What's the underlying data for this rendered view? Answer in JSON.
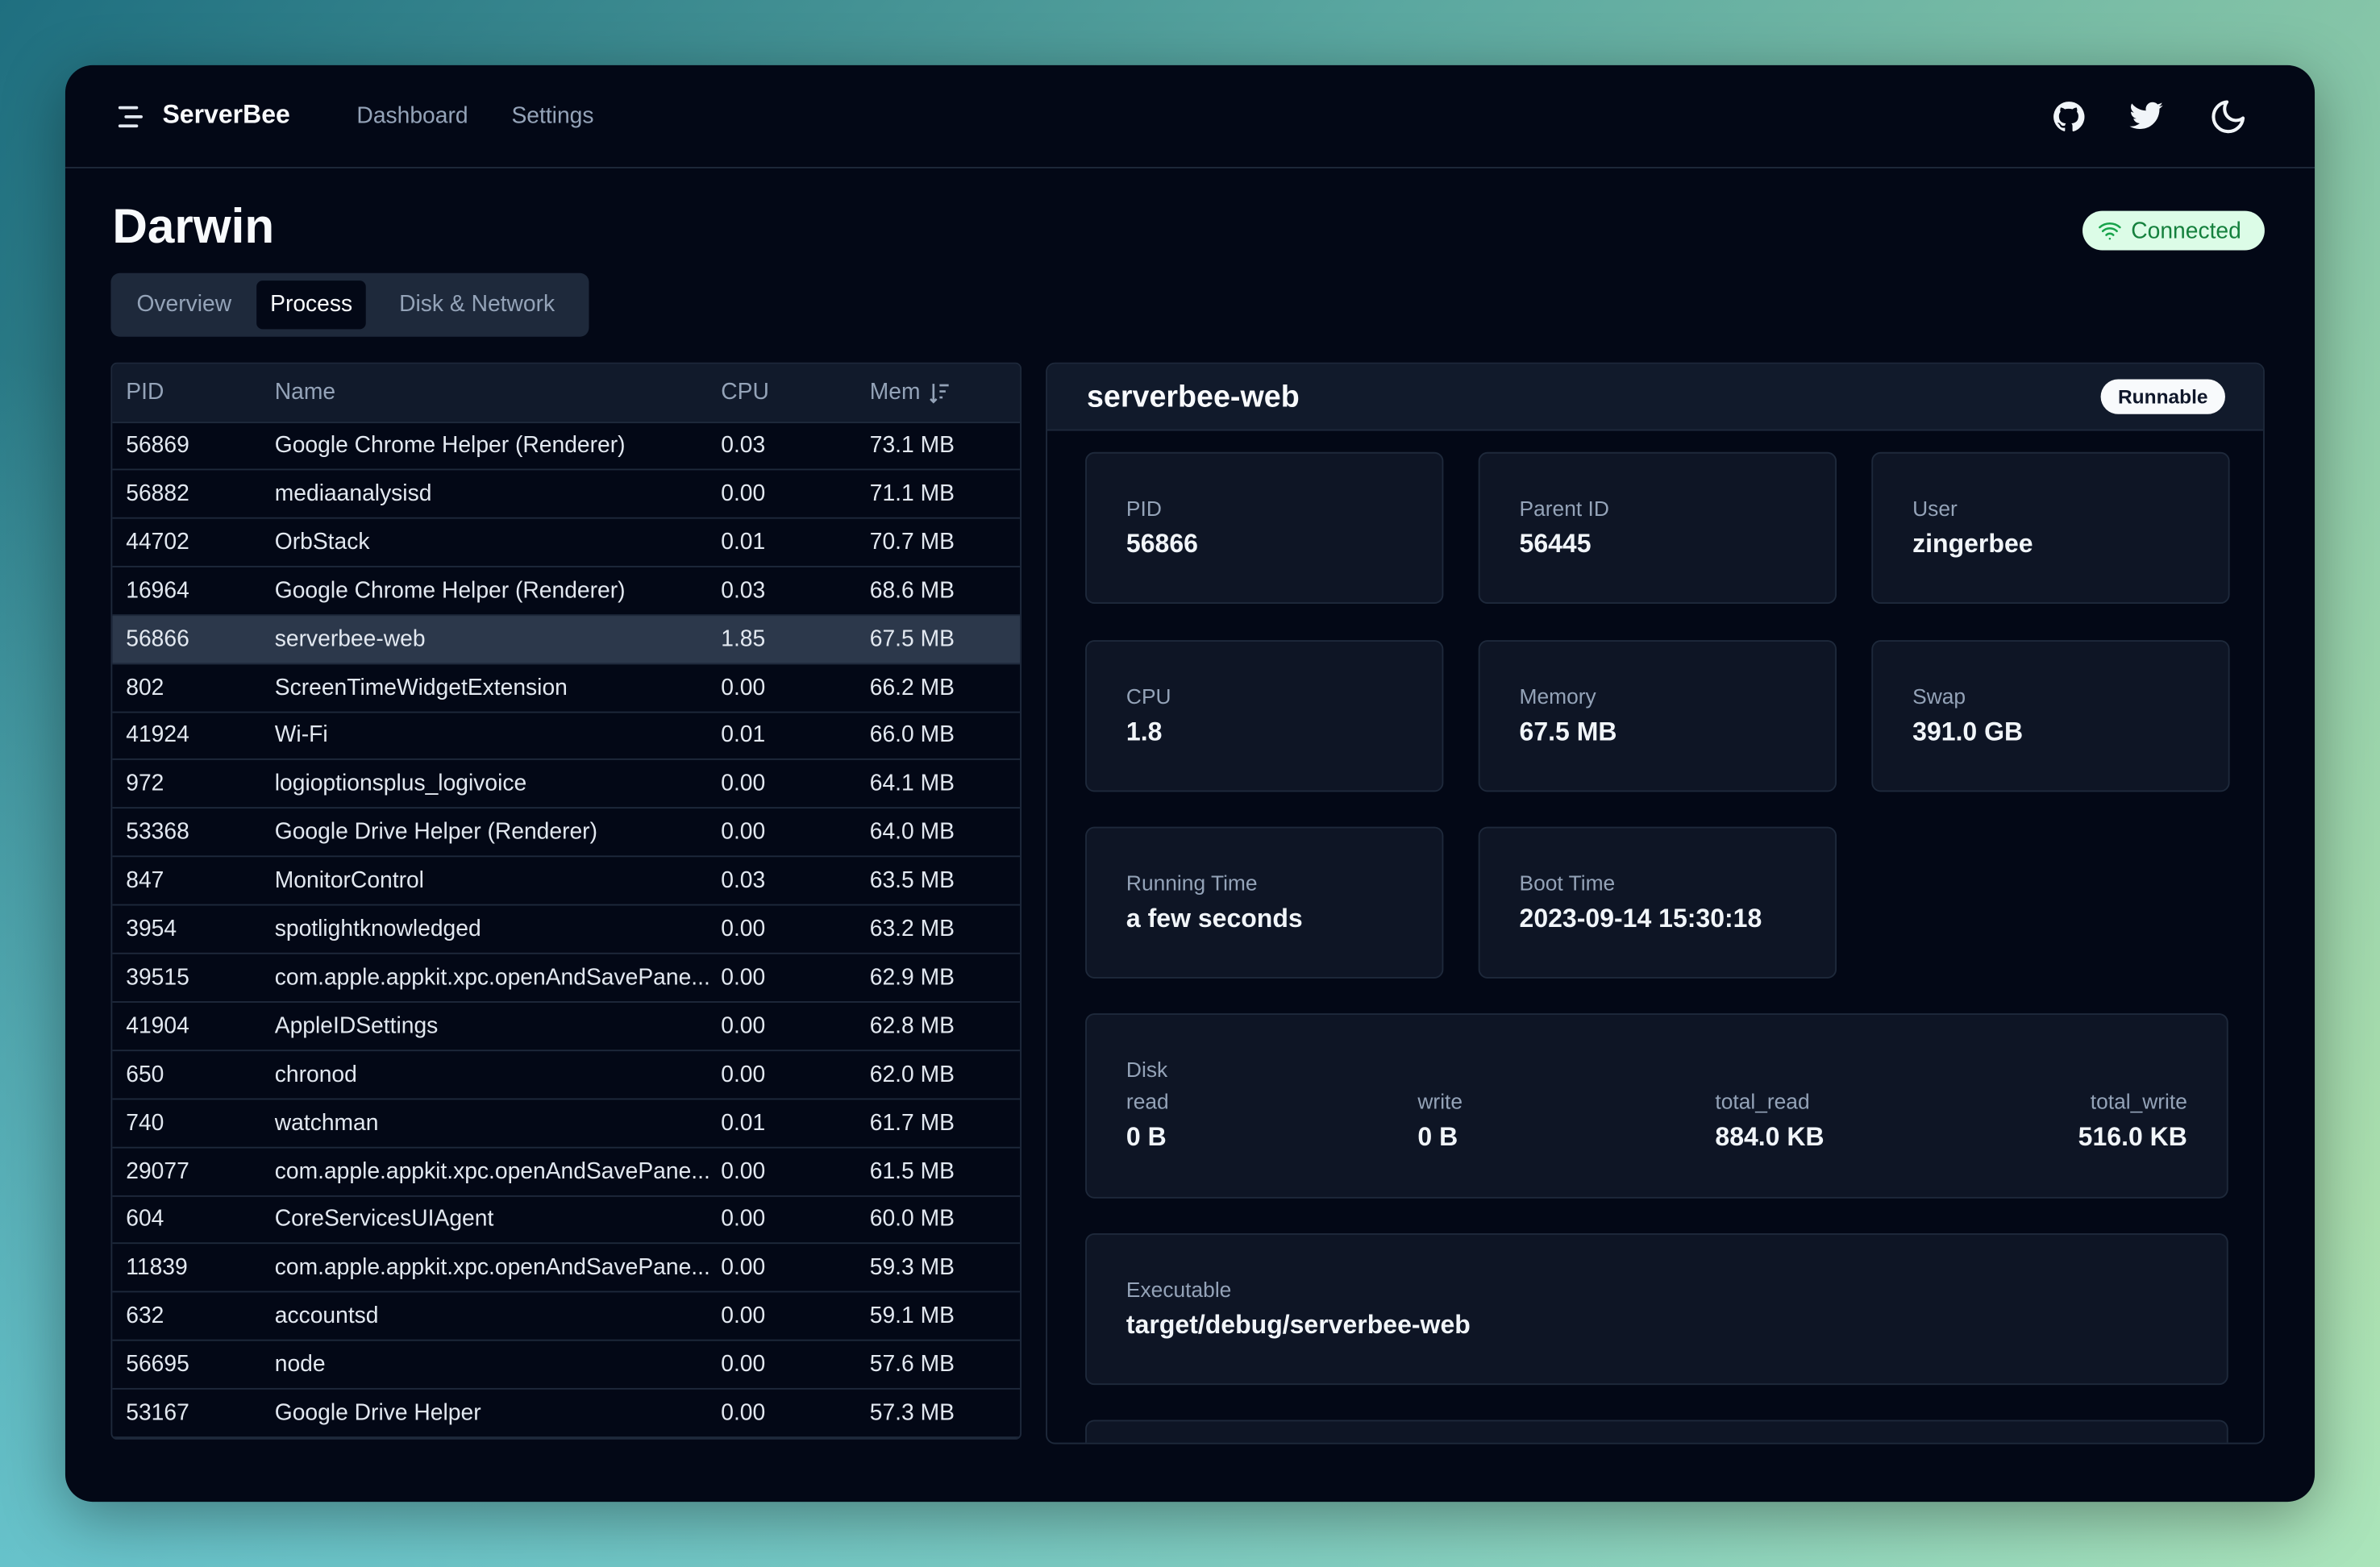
{
  "nav": {
    "brand": "ServerBee",
    "links": [
      "Dashboard",
      "Settings"
    ]
  },
  "header": {
    "title": "Darwin",
    "status": "Connected"
  },
  "tabs": [
    {
      "label": "Overview",
      "active": false
    },
    {
      "label": "Process",
      "active": true
    },
    {
      "label": "Disk & Network",
      "active": false
    }
  ],
  "table": {
    "columns": [
      "PID",
      "Name",
      "CPU",
      "Mem"
    ],
    "rows": [
      [
        "56869",
        "Google Chrome Helper (Renderer)",
        "0.03",
        "73.1 MB"
      ],
      [
        "56882",
        "mediaanalysisd",
        "0.00",
        "71.1 MB"
      ],
      [
        "44702",
        "OrbStack",
        "0.01",
        "70.7 MB"
      ],
      [
        "16964",
        "Google Chrome Helper (Renderer)",
        "0.03",
        "68.6 MB"
      ],
      [
        "56866",
        "serverbee-web",
        "1.85",
        "67.5 MB"
      ],
      [
        "802",
        "ScreenTimeWidgetExtension",
        "0.00",
        "66.2 MB"
      ],
      [
        "41924",
        "Wi-Fi",
        "0.01",
        "66.0 MB"
      ],
      [
        "972",
        "logioptionsplus_logivoice",
        "0.00",
        "64.1 MB"
      ],
      [
        "53368",
        "Google Drive Helper (Renderer)",
        "0.00",
        "64.0 MB"
      ],
      [
        "847",
        "MonitorControl",
        "0.03",
        "63.5 MB"
      ],
      [
        "3954",
        "spotlightknowledged",
        "0.00",
        "63.2 MB"
      ],
      [
        "39515",
        "com.apple.appkit.xpc.openAndSavePane...",
        "0.00",
        "62.9 MB"
      ],
      [
        "41904",
        "AppleIDSettings",
        "0.00",
        "62.8 MB"
      ],
      [
        "650",
        "chronod",
        "0.00",
        "62.0 MB"
      ],
      [
        "740",
        "watchman",
        "0.01",
        "61.7 MB"
      ],
      [
        "29077",
        "com.apple.appkit.xpc.openAndSavePane...",
        "0.00",
        "61.5 MB"
      ],
      [
        "604",
        "CoreServicesUIAgent",
        "0.00",
        "60.0 MB"
      ],
      [
        "11839",
        "com.apple.appkit.xpc.openAndSavePane...",
        "0.00",
        "59.3 MB"
      ],
      [
        "632",
        "accountsd",
        "0.00",
        "59.1 MB"
      ],
      [
        "56695",
        "node",
        "0.00",
        "57.6 MB"
      ],
      [
        "53167",
        "Google Drive Helper",
        "0.00",
        "57.3 MB"
      ]
    ],
    "selected_row": 4
  },
  "detail": {
    "title": "serverbee-web",
    "state": "Runnable",
    "cards": [
      {
        "label": "PID",
        "value": "56866"
      },
      {
        "label": "Parent ID",
        "value": "56445"
      },
      {
        "label": "User",
        "value": "zingerbee"
      },
      {
        "label": "CPU",
        "value": "1.8"
      },
      {
        "label": "Memory",
        "value": "67.5 MB"
      },
      {
        "label": "Swap",
        "value": "391.0 GB"
      },
      {
        "label": "Running Time",
        "value": "a few seconds"
      },
      {
        "label": "Boot Time",
        "value": "2023-09-14 15:30:18"
      }
    ],
    "disk": {
      "label": "Disk",
      "fields": [
        {
          "label": "read",
          "value": "0 B"
        },
        {
          "label": "write",
          "value": "0 B"
        },
        {
          "label": "total_read",
          "value": "884.0 KB"
        },
        {
          "label": "total_write",
          "value": "516.0 KB"
        }
      ]
    },
    "executable": {
      "label": "Executable",
      "value": "target/debug/serverbee-web"
    }
  }
}
